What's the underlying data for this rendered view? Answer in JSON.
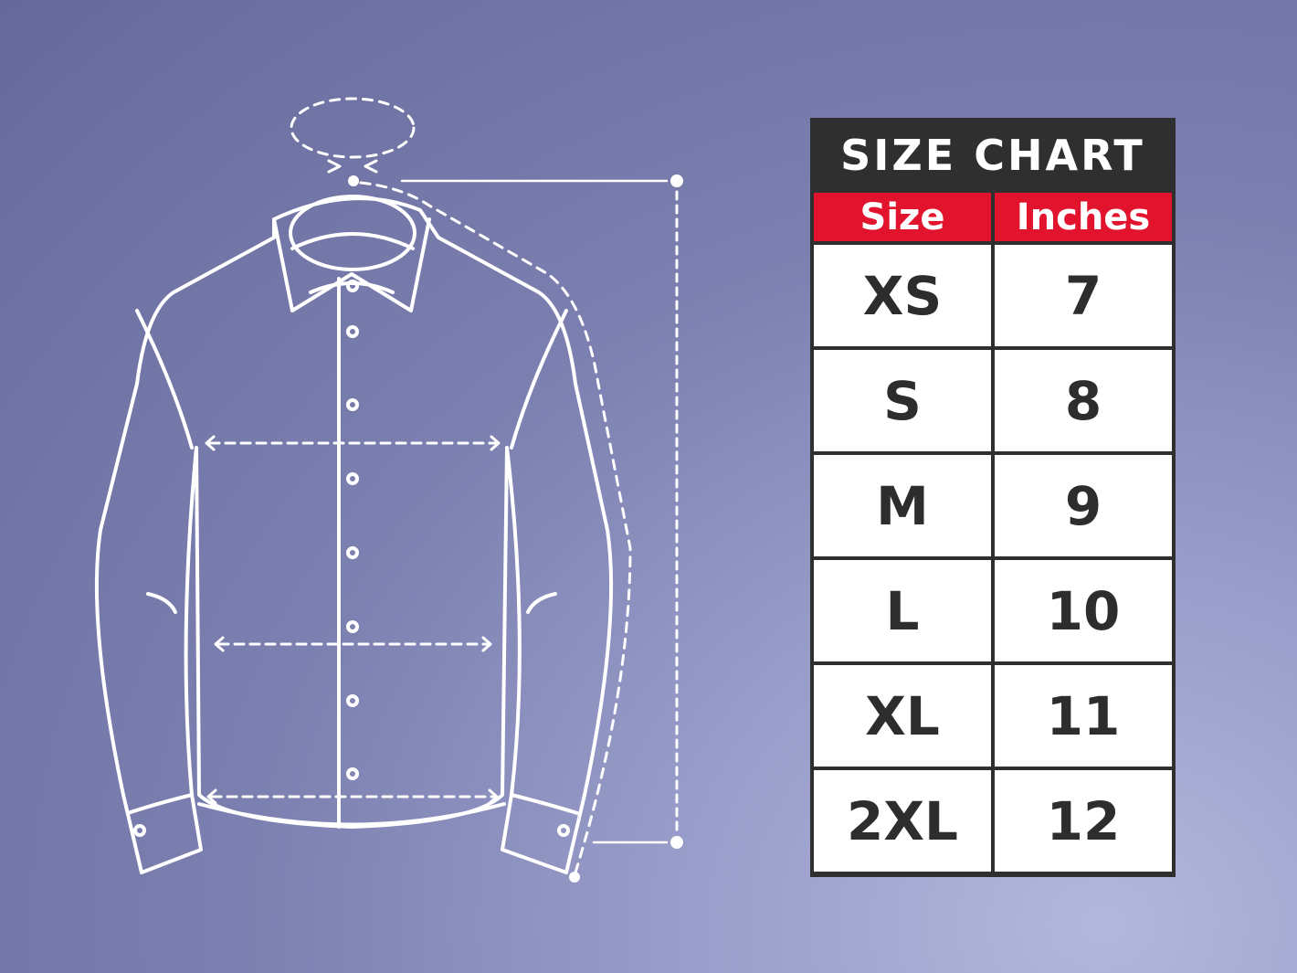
{
  "title": "SIZE CHART",
  "headers": {
    "size": "Size",
    "inches": "Inches"
  },
  "rows": [
    {
      "size": "XS",
      "inches": "7"
    },
    {
      "size": "S",
      "inches": "8"
    },
    {
      "size": "M",
      "inches": "9"
    },
    {
      "size": "L",
      "inches": "10"
    },
    {
      "size": "XL",
      "inches": "11"
    },
    {
      "size": "2XL",
      "inches": "12"
    }
  ],
  "colors": {
    "header_red": "#e2132d",
    "title_bg": "#2f2f2f",
    "background": "#6c70a2",
    "line": "#ffffff"
  }
}
